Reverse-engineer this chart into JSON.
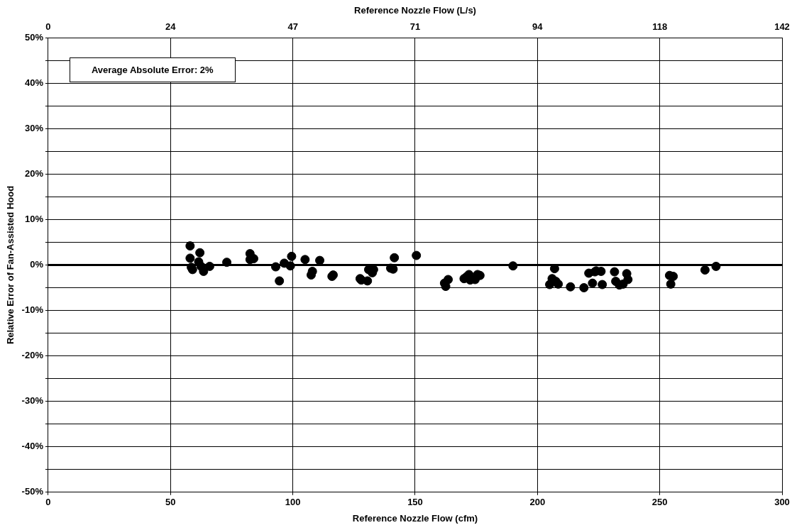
{
  "chart_data": {
    "type": "scatter",
    "xlabel": "Reference Nozzle Flow (cfm)",
    "ylabel": "Relative Error of Fan-Assisted Hood",
    "x2label": "Reference Nozzle Flow (L/s)",
    "annotations": [
      "Average Absolute Error: 2%"
    ],
    "xlim": [
      0,
      300
    ],
    "xticks": [
      0,
      50,
      100,
      150,
      200,
      250,
      300
    ],
    "x2lim": [
      0,
      141.6
    ],
    "x2ticks": [
      {
        "value": 0,
        "label": "0"
      },
      {
        "value": 23.6,
        "label": "24"
      },
      {
        "value": 47.2,
        "label": "47"
      },
      {
        "value": 70.8,
        "label": "71"
      },
      {
        "value": 94.4,
        "label": "94"
      },
      {
        "value": 118,
        "label": "118"
      },
      {
        "value": 141.6,
        "label": "142"
      }
    ],
    "ylim": [
      -50,
      50
    ],
    "yticks": [
      {
        "value": -50,
        "label": "-50%"
      },
      {
        "value": -45,
        "label": null
      },
      {
        "value": -40,
        "label": "-40%"
      },
      {
        "value": -35,
        "label": null
      },
      {
        "value": -30,
        "label": "-30%"
      },
      {
        "value": -25,
        "label": null
      },
      {
        "value": -20,
        "label": "-20%"
      },
      {
        "value": -15,
        "label": null
      },
      {
        "value": -10,
        "label": "-10%"
      },
      {
        "value": -5,
        "label": null
      },
      {
        "value": 0,
        "label": "0%"
      },
      {
        "value": 5,
        "label": null
      },
      {
        "value": 10,
        "label": "10%"
      },
      {
        "value": 15,
        "label": null
      },
      {
        "value": 20,
        "label": "20%"
      },
      {
        "value": 25,
        "label": null
      },
      {
        "value": 30,
        "label": "30%"
      },
      {
        "value": 35,
        "label": null
      },
      {
        "value": 40,
        "label": "40%"
      },
      {
        "value": 45,
        "label": null
      },
      {
        "value": 50,
        "label": "50%"
      }
    ],
    "grid": true,
    "legend": false,
    "marker": "circle",
    "ref_lines": [
      {
        "axis": "y",
        "value": 0,
        "color": "#000000"
      }
    ],
    "series": [
      {
        "color": "#000000",
        "x": [
          58,
          58,
          58.5,
          59,
          61.5,
          62,
          62.5,
          63.5,
          66,
          73,
          82.5,
          82.5,
          84,
          93,
          94.5,
          96.5,
          99,
          99.5,
          105,
          107.5,
          108,
          111,
          116,
          116.5,
          127.5,
          128,
          130.5,
          131,
          132.5,
          133,
          140,
          141,
          141.5,
          150.5,
          162,
          162.5,
          163.5,
          170,
          171,
          172,
          172.5,
          174.5,
          175.5,
          176.5,
          190,
          205,
          206,
          207,
          207.5,
          208.5,
          213.5,
          219,
          221,
          222.5,
          223.5,
          224,
          226,
          226.5,
          231.5,
          232,
          233.5,
          235,
          236.5,
          237,
          254,
          254.5,
          255.5,
          268.5,
          273
        ],
        "values": [
          4.2,
          1.5,
          -0.5,
          -1,
          0.7,
          2.7,
          -0.3,
          -1.4,
          -0.3,
          0.6,
          2.5,
          1.2,
          1.4,
          -0.4,
          -3.5,
          0.4,
          -0.2,
          1.9,
          1.2,
          -2.2,
          -1.4,
          1,
          -2.5,
          -2.2,
          -3,
          -3.3,
          -3.5,
          -1,
          -1.7,
          -1,
          -0.7,
          -0.9,
          1.6,
          2.1,
          -4,
          -4.7,
          -3.2,
          -3,
          -2.6,
          -2.1,
          -3.3,
          -3.2,
          -2.1,
          -2.3,
          -0.2,
          -4.3,
          -3,
          -0.8,
          -3.6,
          -4.2,
          -4.8,
          -5,
          -1.8,
          -4,
          -1.5,
          -1.3,
          -1.4,
          -4.3,
          -1.5,
          -3.6,
          -4.4,
          -4.2,
          -1.9,
          -3.2,
          -2.3,
          -4.2,
          -2.5,
          -1.1,
          -0.3
        ]
      }
    ]
  }
}
